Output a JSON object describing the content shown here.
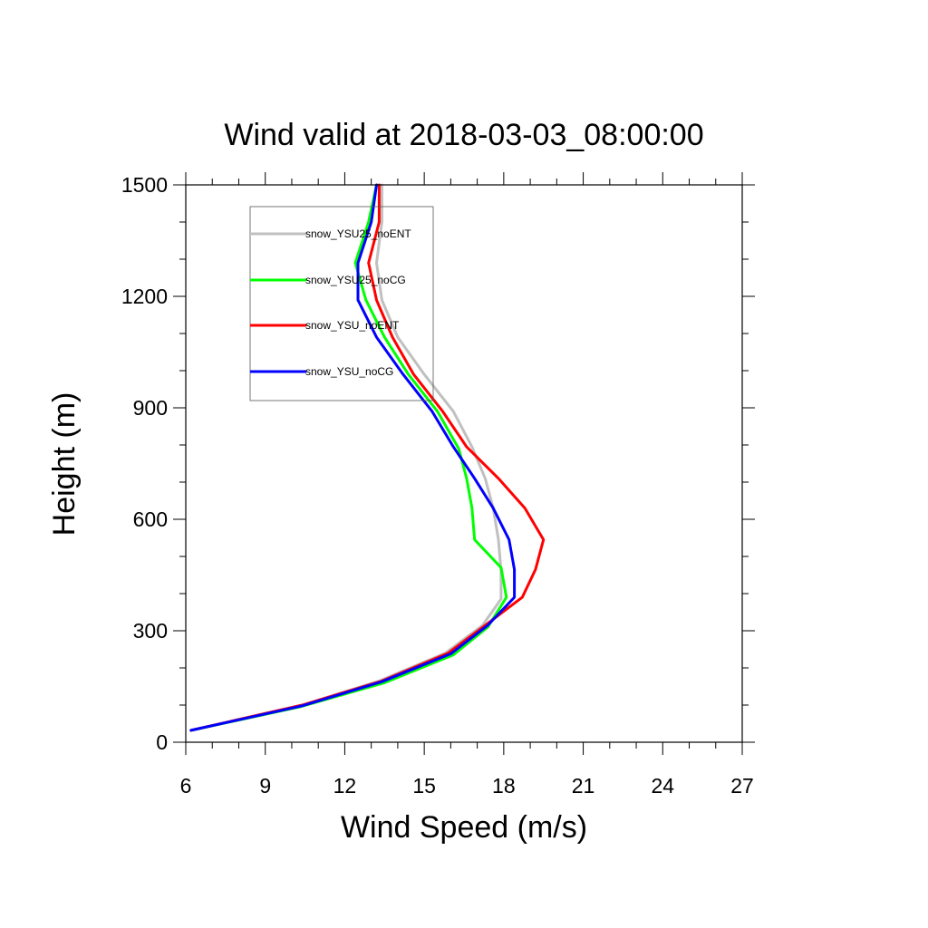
{
  "chart_data": {
    "type": "line",
    "title": "Wind valid at 2018-03-03_08:00:00",
    "xlabel": "Wind Speed (m/s)",
    "ylabel": "Height (m)",
    "xlim": [
      6,
      27
    ],
    "ylim": [
      0,
      1500
    ],
    "xticks": [
      "6",
      "9",
      "12",
      "15",
      "18",
      "21",
      "24",
      "27"
    ],
    "yticks": [
      "0",
      "300",
      "600",
      "900",
      "1200",
      "1500"
    ],
    "grid": false,
    "legend_position": "top-left",
    "series": [
      {
        "name": "snow_YSU25_noENT",
        "color": "#c0c0c0",
        "points": [
          [
            6.2,
            32
          ],
          [
            10.4,
            100
          ],
          [
            13.3,
            165
          ],
          [
            15.8,
            240
          ],
          [
            17.2,
            315
          ],
          [
            17.9,
            385
          ],
          [
            17.9,
            460
          ],
          [
            17.8,
            545
          ],
          [
            17.6,
            630
          ],
          [
            17.3,
            710
          ],
          [
            16.8,
            795
          ],
          [
            16.1,
            890
          ],
          [
            15.0,
            990
          ],
          [
            14.0,
            1090
          ],
          [
            13.4,
            1190
          ],
          [
            13.2,
            1290
          ],
          [
            13.4,
            1400
          ],
          [
            13.4,
            1500
          ]
        ]
      },
      {
        "name": "snow_YSU25_noCG",
        "color": "#00ff00",
        "points": [
          [
            6.2,
            32
          ],
          [
            10.3,
            95
          ],
          [
            13.5,
            160
          ],
          [
            16.1,
            235
          ],
          [
            17.4,
            310
          ],
          [
            18.1,
            390
          ],
          [
            17.9,
            470
          ],
          [
            16.9,
            545
          ],
          [
            16.8,
            630
          ],
          [
            16.6,
            710
          ],
          [
            16.3,
            790
          ],
          [
            15.5,
            890
          ],
          [
            14.4,
            990
          ],
          [
            13.5,
            1090
          ],
          [
            12.8,
            1190
          ],
          [
            12.4,
            1290
          ],
          [
            12.9,
            1400
          ],
          [
            13.2,
            1500
          ]
        ]
      },
      {
        "name": "snow_YSU_noENT",
        "color": "#ff0000",
        "points": [
          [
            6.2,
            32
          ],
          [
            10.4,
            100
          ],
          [
            13.4,
            165
          ],
          [
            15.9,
            240
          ],
          [
            17.4,
            320
          ],
          [
            18.7,
            390
          ],
          [
            19.2,
            465
          ],
          [
            19.5,
            545
          ],
          [
            18.8,
            630
          ],
          [
            17.8,
            710
          ],
          [
            16.6,
            795
          ],
          [
            15.7,
            890
          ],
          [
            14.6,
            990
          ],
          [
            13.8,
            1090
          ],
          [
            13.2,
            1190
          ],
          [
            12.9,
            1290
          ],
          [
            13.3,
            1400
          ],
          [
            13.3,
            1500
          ]
        ]
      },
      {
        "name": "snow_YSU_noCG",
        "color": "#0000ff",
        "points": [
          [
            6.2,
            32
          ],
          [
            10.4,
            98
          ],
          [
            13.4,
            163
          ],
          [
            16.0,
            238
          ],
          [
            17.4,
            315
          ],
          [
            18.4,
            390
          ],
          [
            18.4,
            465
          ],
          [
            18.2,
            545
          ],
          [
            17.6,
            630
          ],
          [
            16.9,
            710
          ],
          [
            16.1,
            795
          ],
          [
            15.3,
            890
          ],
          [
            14.2,
            990
          ],
          [
            13.2,
            1090
          ],
          [
            12.5,
            1190
          ],
          [
            12.5,
            1290
          ],
          [
            13.0,
            1400
          ],
          [
            13.2,
            1500
          ]
        ]
      }
    ]
  }
}
